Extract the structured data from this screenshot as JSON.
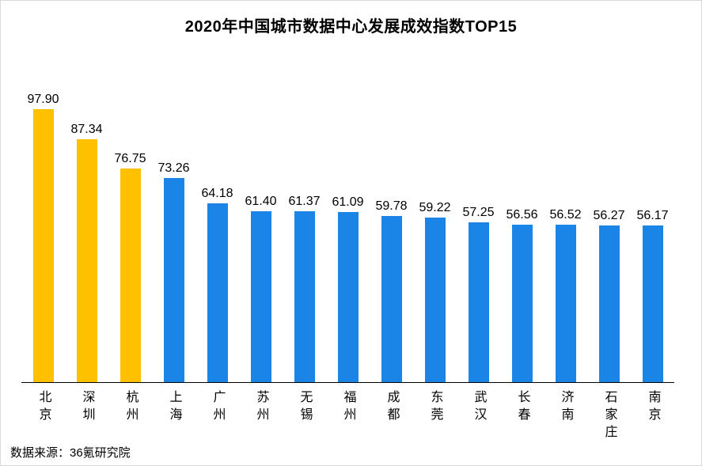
{
  "source": "数据来源：36氪研究院",
  "colors": {
    "highlight": "#FFC000",
    "normal": "#1B84E7"
  },
  "chart_data": {
    "type": "bar",
    "title": "2020年中国城市数据中心发展成效指数TOP15",
    "categories": [
      "北京",
      "深圳",
      "杭州",
      "上海",
      "广州",
      "苏州",
      "无锡",
      "福州",
      "成都",
      "东莞",
      "武汉",
      "长春",
      "济南",
      "石家庄",
      "南京"
    ],
    "values": [
      97.9,
      87.34,
      76.75,
      73.26,
      64.18,
      61.4,
      61.37,
      61.09,
      59.78,
      59.22,
      57.25,
      56.56,
      56.52,
      56.27,
      56.17
    ],
    "value_labels": [
      "97.90",
      "87.34",
      "76.75",
      "73.26",
      "64.18",
      "61.40",
      "61.37",
      "61.09",
      "59.78",
      "59.22",
      "57.25",
      "56.56",
      "56.52",
      "56.27",
      "56.17"
    ],
    "highlight_count": 3,
    "bar_color_highlight": "#FFC000",
    "bar_color_default": "#1B84E7",
    "ylim": [
      0,
      100
    ],
    "grid": false,
    "legend": false,
    "orientation": "vertical",
    "x_label_orientation": "vertical",
    "value_labels_position": "above-bar"
  }
}
